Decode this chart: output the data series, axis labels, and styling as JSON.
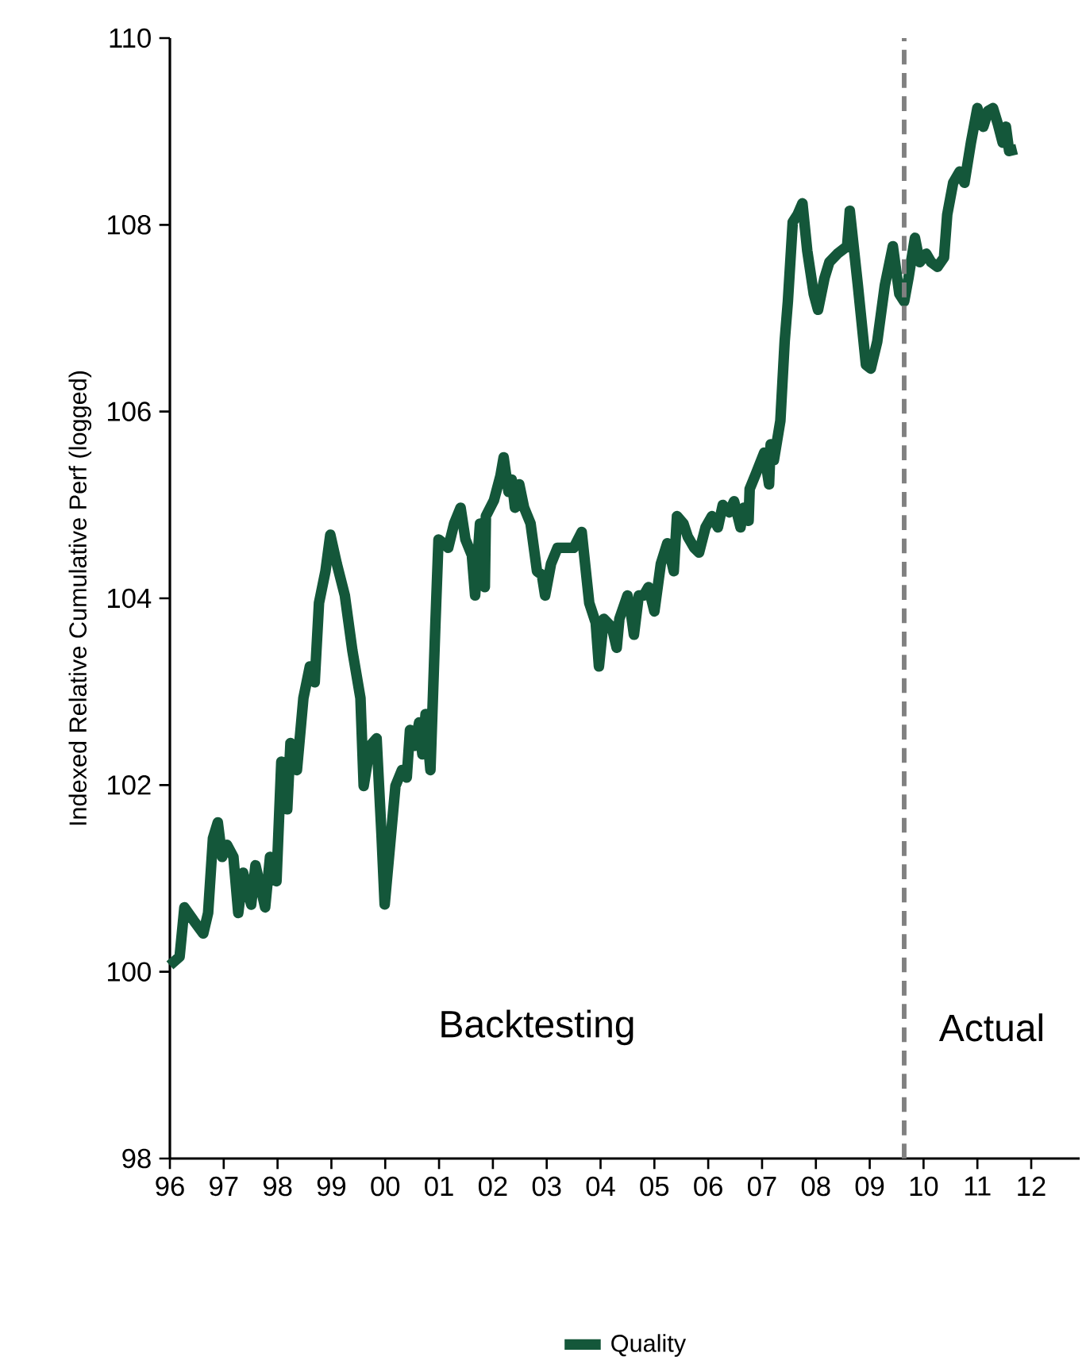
{
  "chart_data": {
    "type": "line",
    "ylabel": "Indexed Relative Cumulative Perf (logged)",
    "xlim": [
      1996,
      2012.9
    ],
    "ylim": [
      98,
      110
    ],
    "xticks": [
      {
        "value": 1996,
        "label": "96"
      },
      {
        "value": 1997,
        "label": "97"
      },
      {
        "value": 1998,
        "label": "98"
      },
      {
        "value": 1999,
        "label": "99"
      },
      {
        "value": 2000,
        "label": "00"
      },
      {
        "value": 2001,
        "label": "01"
      },
      {
        "value": 2002,
        "label": "02"
      },
      {
        "value": 2003,
        "label": "03"
      },
      {
        "value": 2004,
        "label": "04"
      },
      {
        "value": 2005,
        "label": "05"
      },
      {
        "value": 2006,
        "label": "06"
      },
      {
        "value": 2007,
        "label": "07"
      },
      {
        "value": 2008,
        "label": "08"
      },
      {
        "value": 2009,
        "label": "09"
      },
      {
        "value": 2010,
        "label": "10"
      },
      {
        "value": 2011,
        "label": "11"
      },
      {
        "value": 2012,
        "label": "12"
      }
    ],
    "yticks": [
      98,
      100,
      102,
      104,
      106,
      108,
      110
    ],
    "grid": false,
    "legend": "bottom",
    "line_style": "solid",
    "marker": "none",
    "ref_lines": [
      {
        "axis": "x",
        "value": 2009.64,
        "color": "#808080",
        "line_style": "dashed"
      }
    ],
    "annotations": [
      "Backtesting",
      "Actual"
    ],
    "series": [
      {
        "name": "Quality",
        "color": "#14573a",
        "x": [
          1996.0,
          1996.18,
          1996.27,
          1996.44,
          1996.62,
          1996.71,
          1996.8,
          1996.89,
          1996.97,
          1997.06,
          1997.18,
          1997.27,
          1997.36,
          1997.51,
          1997.59,
          1997.77,
          1997.86,
          1997.98,
          1998.07,
          1998.18,
          1998.24,
          1998.36,
          1998.48,
          1998.6,
          1998.69,
          1998.77,
          1998.89,
          1998.98,
          1999.1,
          1999.25,
          1999.39,
          1999.54,
          1999.6,
          1999.72,
          1999.84,
          1999.93,
          1999.99,
          2000.07,
          2000.19,
          2000.31,
          2000.4,
          2000.46,
          2000.55,
          2000.63,
          2000.69,
          2000.75,
          2000.84,
          2000.93,
          2000.99,
          2001.08,
          2001.17,
          2001.28,
          2001.4,
          2001.49,
          2001.61,
          2001.67,
          2001.76,
          2001.85,
          2001.87,
          2002.02,
          2002.14,
          2002.2,
          2002.29,
          2002.35,
          2002.41,
          2002.49,
          2002.58,
          2002.7,
          2002.82,
          2002.91,
          2002.97,
          2003.08,
          2003.2,
          2003.35,
          2003.5,
          2003.65,
          2003.79,
          2003.91,
          2003.97,
          2004.06,
          2004.21,
          2004.3,
          2004.35,
          2004.5,
          2004.56,
          2004.62,
          2004.71,
          2004.8,
          2004.89,
          2005.0,
          2005.12,
          2005.24,
          2005.36,
          2005.42,
          2005.54,
          2005.62,
          2005.74,
          2005.83,
          2005.95,
          2006.07,
          2006.18,
          2006.27,
          2006.39,
          2006.48,
          2006.6,
          2006.66,
          2006.75,
          2006.77,
          2006.89,
          2007.04,
          2007.13,
          2007.16,
          2007.22,
          2007.34,
          2007.42,
          2007.48,
          2007.57,
          2007.66,
          2007.75,
          2007.84,
          2007.96,
          2008.04,
          2008.16,
          2008.25,
          2008.4,
          2008.58,
          2008.63,
          2008.78,
          2008.93,
          2009.02,
          2009.14,
          2009.28,
          2009.43,
          2009.55,
          2009.64,
          2009.72,
          2009.84,
          2009.93,
          2010.05,
          2010.14,
          2010.26,
          2010.38,
          2010.44,
          2010.55,
          2010.67,
          2010.76,
          2010.88,
          2011.0,
          2011.11,
          2011.2,
          2011.29,
          2011.38,
          2011.47,
          2011.53,
          2011.59,
          2011.73
        ],
        "values": [
          100.07,
          100.16,
          100.69,
          100.55,
          100.41,
          100.63,
          101.43,
          101.6,
          101.23,
          101.36,
          101.23,
          100.63,
          101.06,
          100.72,
          101.14,
          100.69,
          101.23,
          100.97,
          102.25,
          101.74,
          102.45,
          102.16,
          102.93,
          103.27,
          103.1,
          103.95,
          104.29,
          104.68,
          104.37,
          104.03,
          103.44,
          102.93,
          101.99,
          102.42,
          102.5,
          101.48,
          100.72,
          101.23,
          101.99,
          102.16,
          102.08,
          102.59,
          102.42,
          102.67,
          102.33,
          102.76,
          102.16,
          103.69,
          104.63,
          104.59,
          104.54,
          104.8,
          104.97,
          104.63,
          104.46,
          104.03,
          104.8,
          104.12,
          104.88,
          105.05,
          105.31,
          105.51,
          105.14,
          105.27,
          104.97,
          105.22,
          104.97,
          104.8,
          104.29,
          104.25,
          104.03,
          104.37,
          104.54,
          104.54,
          104.54,
          104.71,
          103.95,
          103.74,
          103.27,
          103.78,
          103.69,
          103.47,
          103.78,
          104.03,
          103.86,
          103.61,
          104.03,
          104.03,
          104.12,
          103.86,
          104.37,
          104.59,
          104.29,
          104.88,
          104.8,
          104.66,
          104.54,
          104.49,
          104.76,
          104.88,
          104.76,
          105.0,
          104.92,
          105.04,
          104.76,
          104.97,
          104.83,
          105.17,
          105.34,
          105.56,
          105.22,
          105.65,
          105.48,
          105.9,
          106.75,
          107.18,
          108.03,
          108.11,
          108.23,
          107.72,
          107.26,
          107.09,
          107.43,
          107.6,
          107.69,
          107.77,
          108.15,
          107.35,
          106.5,
          106.46,
          106.75,
          107.35,
          107.77,
          107.26,
          107.18,
          107.43,
          107.86,
          107.6,
          107.69,
          107.6,
          107.55,
          107.65,
          108.11,
          108.45,
          108.57,
          108.45,
          108.88,
          109.25,
          109.05,
          109.22,
          109.25,
          109.08,
          108.88,
          109.05,
          108.79,
          108.81
        ]
      }
    ]
  }
}
